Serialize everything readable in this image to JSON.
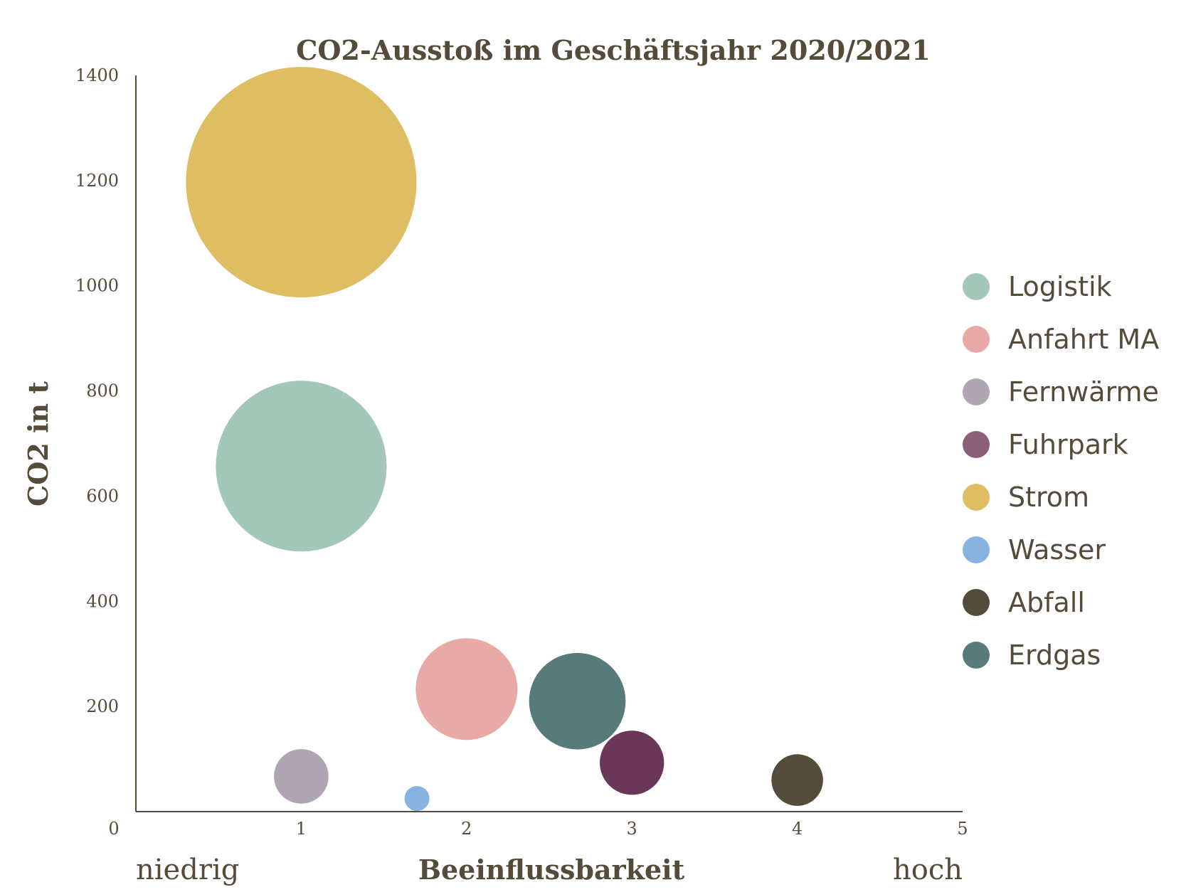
{
  "chart_data": {
    "type": "bubble",
    "title": "CO2-Ausstoß im Geschäftsjahr 2020/2021",
    "xlabel": "Beeinflussbarkeit",
    "ylabel": "CO2 in t",
    "x_low_label": "niedrig",
    "x_high_label": "hoch",
    "xlim": [
      0,
      5
    ],
    "ylim": [
      0,
      1400
    ],
    "x_ticks": [
      "0",
      "1",
      "2",
      "3",
      "4",
      "5"
    ],
    "y_ticks": [
      "200",
      "400",
      "600",
      "800",
      "1000",
      "1200",
      "1400"
    ],
    "grid": false,
    "legend_position": "right",
    "series": [
      {
        "name": "Logistik",
        "x": 1.0,
        "y": 657,
        "size": 657,
        "color": "#a3c7b8"
      },
      {
        "name": "Anfahrt MA",
        "x": 2.0,
        "y": 233,
        "size": 233,
        "color": "#e8aaa6"
      },
      {
        "name": "Fernwärme",
        "x": 1.0,
        "y": 67,
        "size": 67,
        "color": "#b0a5b2"
      },
      {
        "name": "Fuhrpark",
        "x": 3.0,
        "y": 93,
        "size": 93,
        "color": "#6b3759"
      },
      {
        "name": "Strom",
        "x": 1.0,
        "y": 1197,
        "size": 1197,
        "color": "#dfbd63"
      },
      {
        "name": "Wasser",
        "x": 1.7,
        "y": 25,
        "size": 14,
        "color": "#87b3e0"
      },
      {
        "name": "Abfall",
        "x": 4.0,
        "y": 60,
        "size": 60,
        "color": "#554b3a"
      },
      {
        "name": "Erdgas",
        "x": 2.67,
        "y": 210,
        "size": 210,
        "color": "#577b7a"
      }
    ],
    "legend_marker_colors": {
      "Fuhrpark": "#8b5e7a"
    }
  },
  "colors": {
    "text": "#554b3a",
    "axis": "#554b3a"
  }
}
